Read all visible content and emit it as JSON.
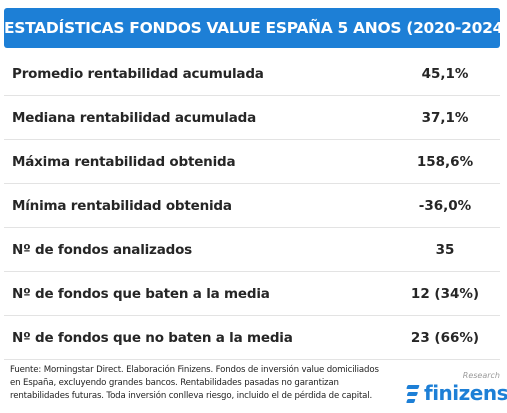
{
  "header": {
    "title": "ESTADÍSTICAS FONDOS VALUE ESPAÑA 5 ANOS (2020-2024)"
  },
  "table": {
    "rows": [
      [
        "Promedio rentabilidad acumulada",
        "45,1%"
      ],
      [
        "Mediana rentabilidad acumulada",
        "37,1%"
      ],
      [
        "Máxima rentabilidad obtenida",
        "158,6%"
      ],
      [
        "Mínima rentabilidad obtenida",
        "-36,0%"
      ],
      [
        "Nº de fondos analizados",
        "35"
      ],
      [
        "Nº de fondos que baten a la media",
        "12 (34%)"
      ],
      [
        "Nº de fondos que no baten a la media",
        "23 (66%)"
      ]
    ]
  },
  "footer": {
    "lines": [
      "Fuente: Morningstar Direct. Elaboración Finizens. Fondos de inversión value domiciliados",
      "en España, excluyendo grandes bancos. Rentabilidades pasadas no garantizan",
      "rentabilidades futuras. Toda inversión conlleva riesgo, incluido el de pérdida de capital."
    ]
  },
  "logo": {
    "tag": "Research",
    "name": "finizens"
  }
}
